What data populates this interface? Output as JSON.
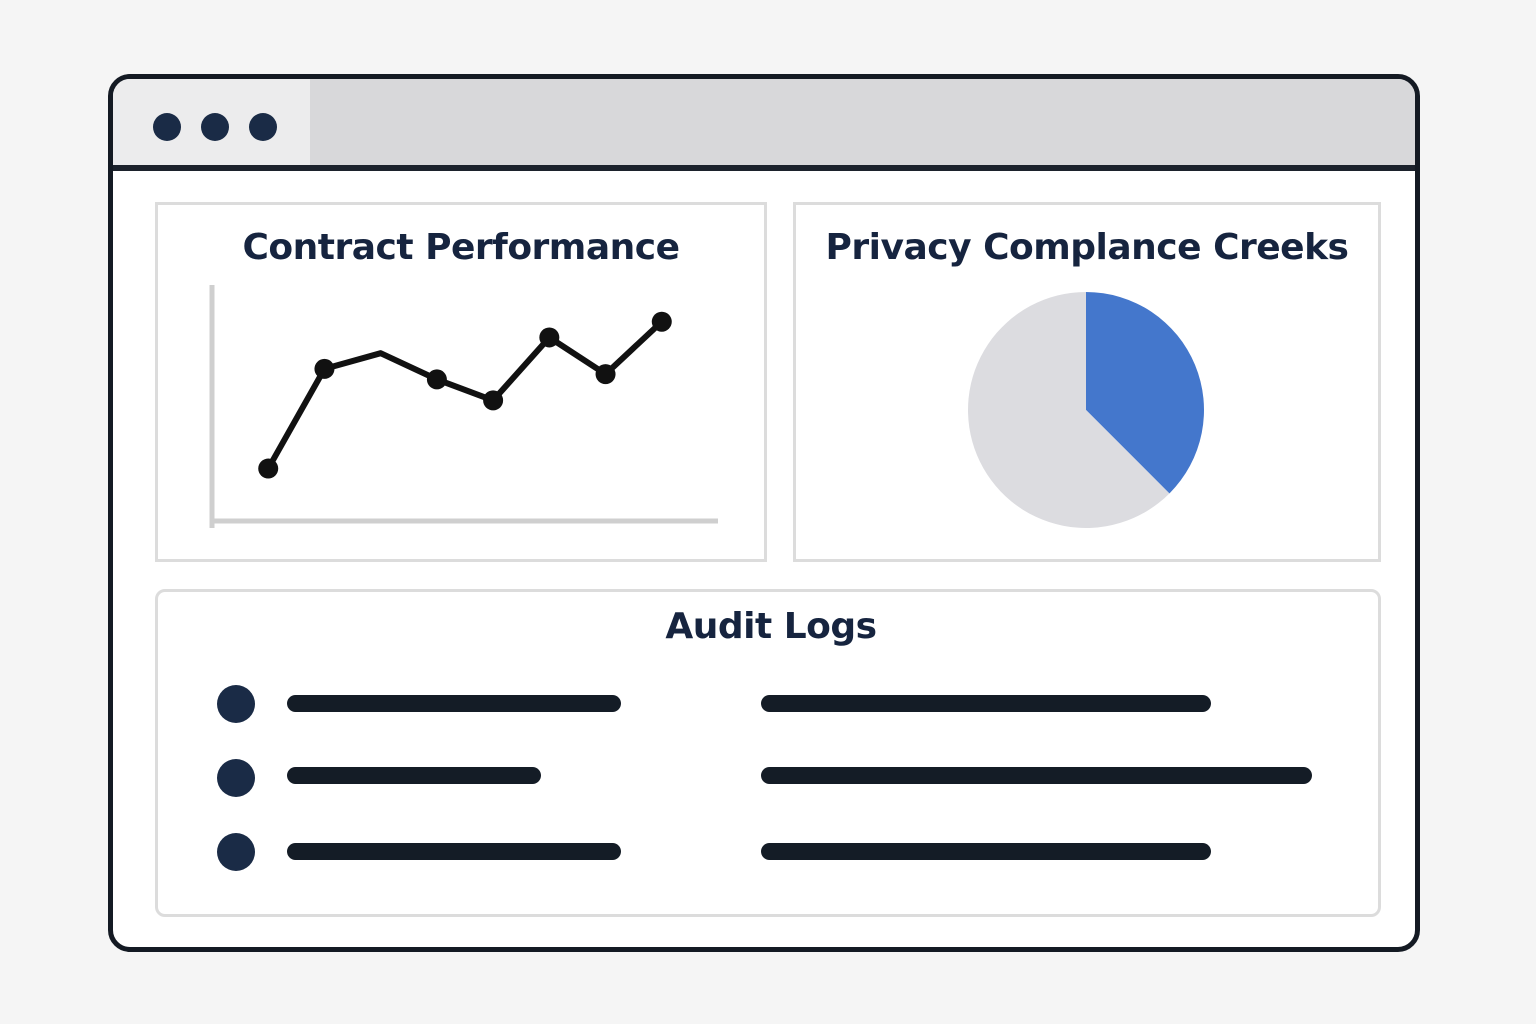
{
  "window": {
    "controls": [
      "window-dot-1",
      "window-dot-2",
      "window-dot-3"
    ]
  },
  "contract_performance": {
    "title": "Contract Performance"
  },
  "privacy_compliance": {
    "title": "Privacy Complance Creeks"
  },
  "audit_logs": {
    "title": "Audit Logs"
  },
  "colors": {
    "dark_navy": "#1a2b46",
    "pie_blue": "#4477cc",
    "pie_gray": "#dcdce0",
    "line_black": "#111111"
  },
  "chart_data": [
    {
      "type": "line",
      "title": "Contract Performance",
      "xlabel": "",
      "ylabel": "",
      "x": [
        1,
        2,
        3,
        4,
        5,
        6,
        7,
        8
      ],
      "series": [
        {
          "values": [
            1.0,
            4.8,
            5.4,
            4.4,
            3.6,
            6.0,
            4.6,
            6.6
          ]
        }
      ],
      "xlim": [
        0,
        9
      ],
      "ylim": [
        -1,
        8
      ],
      "markers": [
        true,
        true,
        false,
        true,
        true,
        true,
        true,
        true
      ],
      "grid": false
    },
    {
      "type": "pie",
      "title": "Privacy Complance Creeks",
      "values": [
        37.5,
        62.5
      ],
      "colors": [
        "#4477cc",
        "#dcdce0"
      ]
    }
  ]
}
